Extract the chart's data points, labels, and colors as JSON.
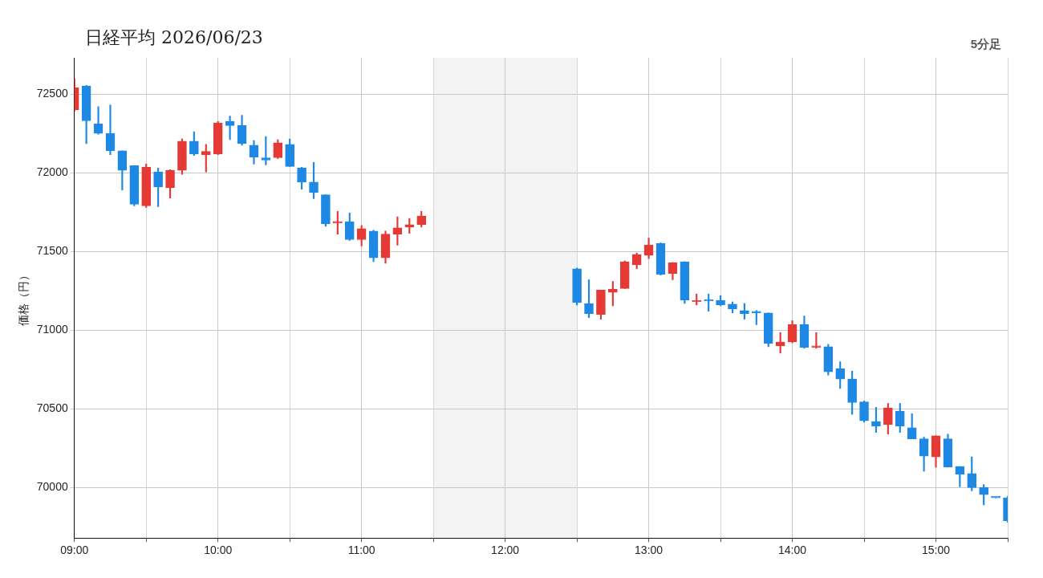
{
  "chart_data": {
    "type": "candlestick",
    "title": "日経平均 2026/06/23",
    "subtitle": "5分足",
    "ylabel": "価格（円）",
    "x": [
      9,
      9.0833,
      9.1667,
      9.25,
      9.3333,
      9.4167,
      9.5,
      9.5833,
      9.6667,
      9.75,
      9.8333,
      9.9167,
      10,
      10.0833,
      10.1667,
      10.25,
      10.3333,
      10.4167,
      10.5,
      10.5833,
      10.6667,
      10.75,
      10.8333,
      10.9167,
      11,
      11.0833,
      11.1667,
      11.25,
      11.3333,
      11.4167,
      12.5,
      12.5833,
      12.6667,
      12.75,
      12.8333,
      12.9167,
      13,
      13.0833,
      13.1667,
      13.25,
      13.3333,
      13.4167,
      13.5,
      13.5833,
      13.6667,
      13.75,
      13.8333,
      13.9167,
      14,
      14.0833,
      14.1667,
      14.25,
      14.3333,
      14.4167,
      14.5,
      14.5833,
      14.6667,
      14.75,
      14.8333,
      14.9167,
      15,
      15.0833,
      15.1667,
      15.25,
      15.3333,
      15.4167,
      15.5
    ],
    "ohlc": [
      [
        72400,
        72600,
        72390,
        72540
      ],
      [
        72550,
        72555,
        72185,
        72330
      ],
      [
        72310,
        72420,
        72245,
        72250
      ],
      [
        72250,
        72430,
        72115,
        72140
      ],
      [
        72140,
        72140,
        71890,
        72015
      ],
      [
        72045,
        72045,
        71790,
        71800
      ],
      [
        71790,
        72055,
        71780,
        72035
      ],
      [
        72005,
        72030,
        71785,
        71910
      ],
      [
        71905,
        72020,
        71840,
        72015
      ],
      [
        72015,
        72215,
        71990,
        72200
      ],
      [
        72200,
        72260,
        72110,
        72120
      ],
      [
        72115,
        72180,
        72005,
        72135
      ],
      [
        72120,
        72325,
        72115,
        72315
      ],
      [
        72325,
        72360,
        72210,
        72300
      ],
      [
        72300,
        72365,
        72175,
        72185
      ],
      [
        72175,
        72205,
        72055,
        72100
      ],
      [
        72095,
        72230,
        72050,
        72080
      ],
      [
        72095,
        72210,
        72090,
        72190
      ],
      [
        72180,
        72215,
        72040,
        72040
      ],
      [
        72030,
        72035,
        71895,
        71940
      ],
      [
        71940,
        72065,
        71835,
        71875
      ],
      [
        71860,
        71860,
        71660,
        71675
      ],
      [
        71680,
        71755,
        71610,
        71680
      ],
      [
        71690,
        71745,
        71570,
        71575
      ],
      [
        71575,
        71665,
        71535,
        71645
      ],
      [
        71630,
        71635,
        71435,
        71460
      ],
      [
        71460,
        71630,
        71425,
        71610
      ],
      [
        71610,
        71720,
        71540,
        71650
      ],
      [
        71655,
        71710,
        71615,
        71670
      ],
      [
        71670,
        71755,
        71655,
        71725
      ],
      [
        71390,
        71395,
        71160,
        71175
      ],
      [
        71170,
        71320,
        71080,
        71105
      ],
      [
        71100,
        71255,
        71070,
        71255
      ],
      [
        71240,
        71310,
        71155,
        71260
      ],
      [
        71265,
        71440,
        71265,
        71435
      ],
      [
        71415,
        71490,
        71390,
        71480
      ],
      [
        71475,
        71585,
        71455,
        71540
      ],
      [
        71550,
        71555,
        71350,
        71355
      ],
      [
        71360,
        71430,
        71320,
        71430
      ],
      [
        71435,
        71435,
        71170,
        71190
      ],
      [
        71180,
        71230,
        71160,
        71190
      ],
      [
        71190,
        71230,
        71120,
        71185
      ],
      [
        71190,
        71220,
        71155,
        71160
      ],
      [
        71165,
        71180,
        71110,
        71135
      ],
      [
        71125,
        71170,
        71070,
        71105
      ],
      [
        71120,
        71125,
        71035,
        71110
      ],
      [
        71110,
        71110,
        70895,
        70915
      ],
      [
        70900,
        70985,
        70855,
        70925
      ],
      [
        70925,
        71060,
        70920,
        71035
      ],
      [
        71035,
        71090,
        70885,
        70890
      ],
      [
        70890,
        70985,
        70885,
        70900
      ],
      [
        70895,
        70910,
        70715,
        70735
      ],
      [
        70755,
        70800,
        70630,
        70690
      ],
      [
        70690,
        70740,
        70465,
        70540
      ],
      [
        70545,
        70550,
        70415,
        70425
      ],
      [
        70420,
        70510,
        70350,
        70390
      ],
      [
        70400,
        70535,
        70340,
        70505
      ],
      [
        70485,
        70535,
        70350,
        70390
      ],
      [
        70380,
        70470,
        70310,
        70310
      ],
      [
        70310,
        70320,
        70105,
        70200
      ],
      [
        70195,
        70330,
        70130,
        70330
      ],
      [
        70310,
        70340,
        70130,
        70130
      ],
      [
        70135,
        70135,
        70005,
        70085
      ],
      [
        70090,
        70195,
        69980,
        70000
      ],
      [
        70000,
        70020,
        69890,
        69955
      ],
      [
        69935,
        69935,
        69935,
        69935
      ],
      [
        69935,
        69945,
        69780,
        69790
      ]
    ],
    "colors": [
      "#e53935",
      "#1e88e5",
      "#1e88e5",
      "#1e88e5",
      "#1e88e5",
      "#1e88e5",
      "#e53935",
      "#1e88e5",
      "#e53935",
      "#e53935",
      "#1e88e5",
      "#e53935",
      "#e53935",
      "#1e88e5",
      "#1e88e5",
      "#1e88e5",
      "#1e88e5",
      "#e53935",
      "#1e88e5",
      "#1e88e5",
      "#1e88e5",
      "#1e88e5",
      "#e53935",
      "#1e88e5",
      "#e53935",
      "#1e88e5",
      "#e53935",
      "#e53935",
      "#e53935",
      "#e53935",
      "#1e88e5",
      "#1e88e5",
      "#e53935",
      "#e53935",
      "#e53935",
      "#e53935",
      "#e53935",
      "#1e88e5",
      "#e53935",
      "#1e88e5",
      "#e53935",
      "#1e88e5",
      "#1e88e5",
      "#1e88e5",
      "#1e88e5",
      "#1e88e5",
      "#1e88e5",
      "#e53935",
      "#e53935",
      "#1e88e5",
      "#e53935",
      "#1e88e5",
      "#1e88e5",
      "#1e88e5",
      "#1e88e5",
      "#1e88e5",
      "#e53935",
      "#1e88e5",
      "#1e88e5",
      "#1e88e5",
      "#e53935",
      "#1e88e5",
      "#1e88e5",
      "#1e88e5",
      "#1e88e5",
      "#1e88e5",
      "#1e88e5"
    ],
    "xlim": [
      9,
      15.5
    ],
    "xticks": [
      {
        "value": 9,
        "label": "09:00"
      },
      {
        "value": 9.5,
        "label": null
      },
      {
        "value": 10,
        "label": "10:00"
      },
      {
        "value": 10.5,
        "label": null
      },
      {
        "value": 11,
        "label": "11:00"
      },
      {
        "value": 11.5,
        "label": null
      },
      {
        "value": 12,
        "label": "12:00"
      },
      {
        "value": 12.5,
        "label": null
      },
      {
        "value": 13,
        "label": "13:00"
      },
      {
        "value": 13.5,
        "label": null
      },
      {
        "value": 14,
        "label": "14:00"
      },
      {
        "value": 14.5,
        "label": null
      },
      {
        "value": 15,
        "label": "15:00"
      },
      {
        "value": 15.5,
        "label": null
      }
    ],
    "ylim": [
      69680,
      72730
    ],
    "yticks": [
      70000,
      70500,
      71000,
      71500,
      72000,
      72500
    ],
    "grid": true,
    "bands": [
      {
        "axis": "x",
        "from": 11.5,
        "to": 12.5,
        "color": "#f3f3f3"
      }
    ]
  }
}
